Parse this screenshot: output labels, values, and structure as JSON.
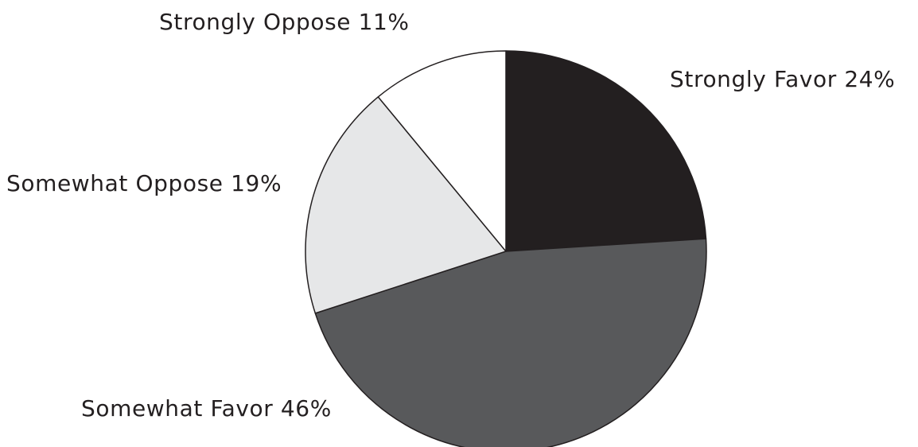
{
  "chart_data": {
    "type": "pie",
    "title": "",
    "start_angle_deg": 0,
    "direction": "clockwise",
    "slices": [
      {
        "label": "Strongly Favor",
        "value": 24,
        "display": "Strongly Favor 24%",
        "color": "#231f20"
      },
      {
        "label": "Somewhat Favor",
        "value": 46,
        "display": "Somewhat Favor 46%",
        "color": "#58595b"
      },
      {
        "label": "Somewhat Oppose",
        "value": 19,
        "display": "Somewhat Oppose 19%",
        "color": "#e6e7e8"
      },
      {
        "label": "Strongly Oppose",
        "value": 11,
        "display": "Strongly Oppose 11%",
        "color": "#ffffff"
      }
    ],
    "legend": "none",
    "labels": "outside"
  }
}
